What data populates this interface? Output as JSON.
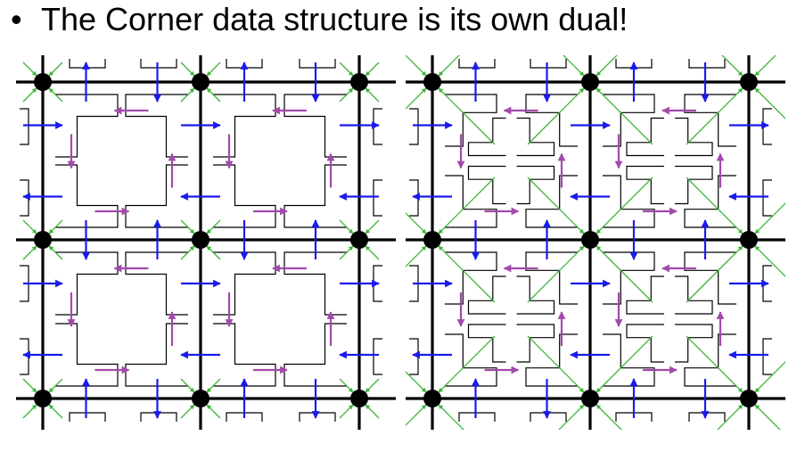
{
  "slide": {
    "bullet": "•",
    "title": "The Corner data structure is its own dual!"
  },
  "figures": [
    {
      "id": "primal"
    },
    {
      "id": "dual"
    }
  ],
  "colors": {
    "mesh_edge": "#000000",
    "vertex": "#000000",
    "corner_outline": "#000000",
    "green_pointer": "#3fb53a",
    "blue_pointer": "#1a1aee",
    "purple_pointer": "#a24aaa",
    "background": "#ffffff"
  }
}
